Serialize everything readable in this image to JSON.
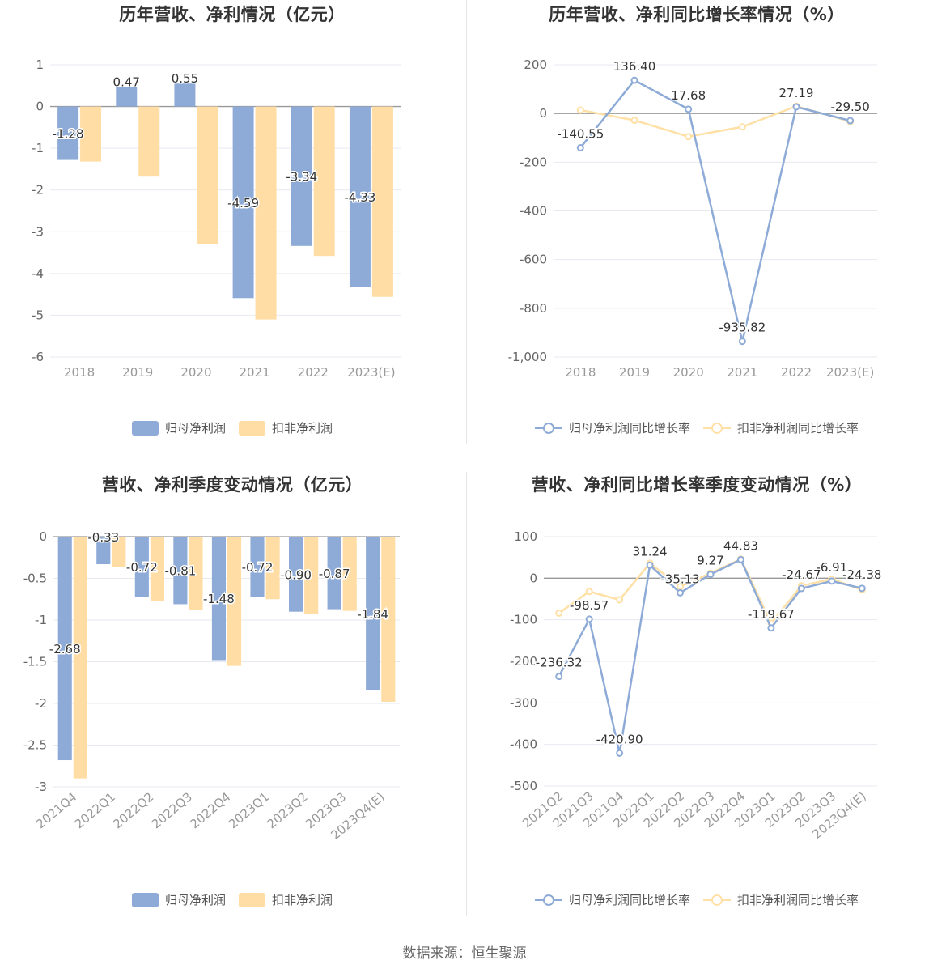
{
  "colors": {
    "primary": "#8eabd7",
    "secondary": "#ffdda4",
    "primary_line": "#8eabd7",
    "secondary_line": "#ffe0a6"
  },
  "source_text": "数据来源：恒生聚源",
  "chart_data": [
    {
      "type": "bar",
      "title": "历年营收、净利情况（亿元）",
      "categories": [
        "2018",
        "2019",
        "2020",
        "2021",
        "2022",
        "2023(E)"
      ],
      "series": [
        {
          "name": "归母净利润",
          "values": [
            -1.28,
            0.47,
            0.55,
            -4.59,
            -3.34,
            -4.33
          ]
        },
        {
          "name": "扣非净利润",
          "values": [
            -1.32,
            -1.68,
            -3.29,
            -5.1,
            -3.58,
            -4.56
          ]
        }
      ],
      "labelled_series": 0,
      "ylim": [
        -6,
        1
      ],
      "yticks": [
        1,
        0,
        -1,
        -2,
        -3,
        -4,
        -5,
        -6
      ],
      "grid": true,
      "legend": "bottom"
    },
    {
      "type": "line",
      "title": "历年营收、净利同比增长率情况（%）",
      "categories": [
        "2018",
        "2019",
        "2020",
        "2021",
        "2022",
        "2023(E)"
      ],
      "series": [
        {
          "name": "归母净利润同比增长率",
          "values": [
            -140.55,
            136.4,
            17.68,
            -935.82,
            27.19,
            -29.5
          ]
        },
        {
          "name": "扣非净利润同比增长率",
          "values": [
            14,
            -28,
            -95,
            -55,
            30,
            -33
          ]
        }
      ],
      "labelled_series": 0,
      "ylim": [
        -1000,
        200
      ],
      "yticks": [
        200,
        0,
        -200,
        -400,
        -600,
        -800,
        -1000
      ],
      "ytick_labels": [
        "200",
        "0",
        "-200",
        "-400",
        "-600",
        "-800",
        "-1,000"
      ],
      "grid": true,
      "legend": "bottom"
    },
    {
      "type": "bar",
      "title": "营收、净利季度变动情况（亿元）",
      "categories": [
        "2021Q4",
        "2022Q1",
        "2022Q2",
        "2022Q3",
        "2022Q4",
        "2023Q1",
        "2023Q2",
        "2023Q3",
        "2023Q4(E)"
      ],
      "series": [
        {
          "name": "归母净利润",
          "values": [
            -2.68,
            -0.33,
            -0.72,
            -0.81,
            -1.48,
            -0.72,
            -0.9,
            -0.87,
            -1.84
          ]
        },
        {
          "name": "扣非净利润",
          "values": [
            -2.9,
            -0.36,
            -0.77,
            -0.88,
            -1.55,
            -0.75,
            -0.93,
            -0.89,
            -1.98
          ]
        }
      ],
      "labelled_series": 0,
      "ylim": [
        -3,
        0
      ],
      "yticks": [
        0,
        -0.5,
        -1,
        -1.5,
        -2,
        -2.5,
        -3
      ],
      "grid": true,
      "legend": "bottom"
    },
    {
      "type": "line",
      "title": "营收、净利同比增长率季度变动情况（%）",
      "categories": [
        "2021Q2",
        "2021Q3",
        "2021Q4",
        "2022Q1",
        "2022Q2",
        "2022Q3",
        "2022Q4",
        "2023Q1",
        "2023Q2",
        "2023Q3",
        "2023Q4(E)"
      ],
      "series": [
        {
          "name": "归母净利润同比增长率",
          "values": [
            -236.32,
            -98.57,
            -420.9,
            31.24,
            -35.13,
            9.27,
            44.83,
            -119.67,
            -24.67,
            -6.91,
            -24.38
          ]
        },
        {
          "name": "扣非净利润同比增长率",
          "values": [
            -84,
            -32,
            -52,
            36,
            -20,
            12,
            46,
            -108,
            -18,
            -2,
            -28
          ]
        }
      ],
      "labelled_series": 0,
      "ylim": [
        -500,
        100
      ],
      "yticks": [
        100,
        0,
        -100,
        -200,
        -300,
        -400,
        -500
      ],
      "grid": true,
      "legend": "bottom"
    }
  ]
}
